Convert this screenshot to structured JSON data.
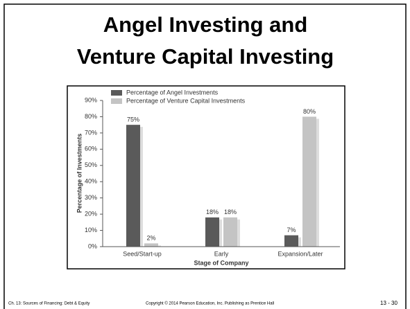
{
  "slide": {
    "title": [
      "Angel Investing and",
      "Venture Capital Investing"
    ],
    "footer": {
      "chapter": "Ch. 13: Sources of Financing: Debt & Equity",
      "copyright": "Copyright © 2014 Pearson Education, Inc. Publishing as Prentice Hall",
      "page": "13 - 30"
    }
  },
  "chart_data": {
    "type": "bar",
    "categories": [
      "Seed/Start-up",
      "Early",
      "Expansion/Later"
    ],
    "series": [
      {
        "name": "Percentage of Angel Investments",
        "color": "#5a5a5a",
        "values": [
          75,
          18,
          7
        ],
        "value_labels": [
          "75%",
          "18%",
          "7%"
        ]
      },
      {
        "name": "Percentage of Venture Capital Investments",
        "color": "#c4c4c4",
        "values": [
          2,
          18,
          80
        ],
        "value_labels": [
          "2%",
          "18%",
          "80%"
        ]
      }
    ],
    "y_label": "Percentage of Investments",
    "x_label": "Stage of Company",
    "ylim": [
      0,
      90
    ],
    "yticks": [
      {
        "value": 0,
        "label": "0%"
      },
      {
        "value": 10,
        "label": "10%"
      },
      {
        "value": 20,
        "label": "20%"
      },
      {
        "value": 30,
        "label": "30%"
      },
      {
        "value": 40,
        "label": "40%"
      },
      {
        "value": 50,
        "label": "50%"
      },
      {
        "value": 60,
        "label": "60%"
      },
      {
        "value": 70,
        "label": "70%"
      },
      {
        "value": 80,
        "label": "80%"
      },
      {
        "value": 90,
        "label": "90%"
      }
    ],
    "legend": "top-left"
  }
}
